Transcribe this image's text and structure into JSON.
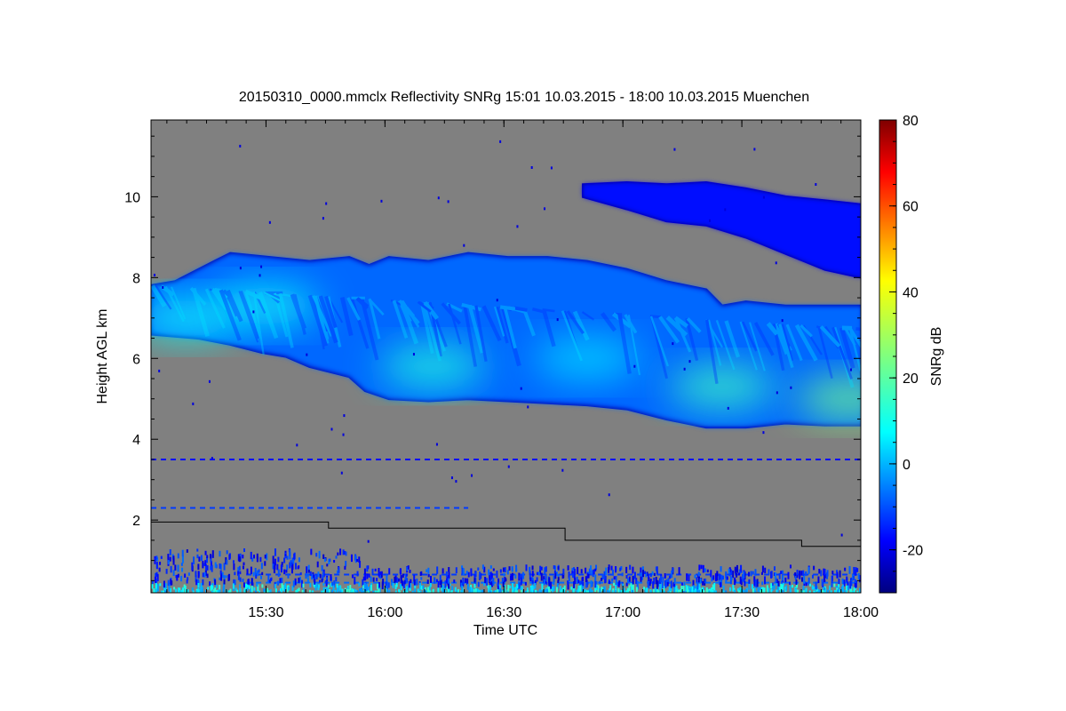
{
  "chart_data": {
    "type": "heatmap",
    "title": "20150310_0000.mmclx Reflectivity SNRg   15:01 10.03.2015 - 18:00 10.03.2015 Muenchen",
    "xlabel": "Time UTC",
    "ylabel": "Height AGL km",
    "xlim": [
      "15:01",
      "18:00"
    ],
    "ylim": [
      0.2,
      11.9
    ],
    "x_ticks": [
      "15:30",
      "16:00",
      "16:30",
      "17:00",
      "17:30",
      "18:00"
    ],
    "y_ticks": [
      "2",
      "4",
      "6",
      "8",
      "10"
    ],
    "background_color": "#808080",
    "colorbar": {
      "label": "SNRg dB",
      "range": [
        -30,
        80
      ],
      "ticks": [
        "-20",
        "0",
        "20",
        "40",
        "60",
        "80"
      ],
      "colormap": "jet"
    },
    "cloud_layers": [
      {
        "name": "main",
        "value_db": -5,
        "top": [
          [
            0.0,
            7.8
          ],
          [
            0.3,
            7.9
          ],
          [
            0.8,
            8.4
          ],
          [
            1.0,
            8.6
          ],
          [
            1.5,
            8.5
          ],
          [
            2.0,
            8.4
          ],
          [
            2.5,
            8.5
          ],
          [
            2.75,
            8.3
          ],
          [
            3.0,
            8.5
          ],
          [
            3.5,
            8.4
          ],
          [
            4.0,
            8.6
          ],
          [
            4.5,
            8.5
          ],
          [
            5.0,
            8.5
          ],
          [
            5.5,
            8.4
          ],
          [
            6.0,
            8.2
          ],
          [
            6.5,
            7.9
          ],
          [
            7.0,
            7.7
          ],
          [
            7.2,
            7.3
          ],
          [
            7.5,
            7.4
          ],
          [
            8.0,
            7.3
          ],
          [
            8.5,
            7.3
          ],
          [
            8.97,
            7.3
          ]
        ],
        "base": [
          [
            8.97,
            4.35
          ],
          [
            8.5,
            4.35
          ],
          [
            8.0,
            4.4
          ],
          [
            7.5,
            4.3
          ],
          [
            7.0,
            4.3
          ],
          [
            6.5,
            4.5
          ],
          [
            6.0,
            4.75
          ],
          [
            5.5,
            4.85
          ],
          [
            5.0,
            4.9
          ],
          [
            4.5,
            4.95
          ],
          [
            4.0,
            5.0
          ],
          [
            3.5,
            4.95
          ],
          [
            3.0,
            5.0
          ],
          [
            2.7,
            5.2
          ],
          [
            2.5,
            5.55
          ],
          [
            2.0,
            5.8
          ],
          [
            1.7,
            6.05
          ],
          [
            1.4,
            6.15
          ],
          [
            1.0,
            6.35
          ],
          [
            0.6,
            6.5
          ],
          [
            0.0,
            6.6
          ]
        ]
      },
      {
        "name": "upper",
        "value_db": -15,
        "top": [
          [
            5.45,
            10.3
          ],
          [
            6.0,
            10.35
          ],
          [
            6.5,
            10.3
          ],
          [
            7.0,
            10.35
          ],
          [
            7.5,
            10.2
          ],
          [
            8.0,
            10.0
          ],
          [
            8.5,
            9.9
          ],
          [
            8.97,
            9.8
          ]
        ],
        "base": [
          [
            8.97,
            8.0
          ],
          [
            8.5,
            8.2
          ],
          [
            8.0,
            8.6
          ],
          [
            7.5,
            9.0
          ],
          [
            7.0,
            9.3
          ],
          [
            6.5,
            9.4
          ],
          [
            6.0,
            9.7
          ],
          [
            5.45,
            10.0
          ]
        ]
      }
    ],
    "cores": [
      {
        "x": 0.45,
        "y": 7.0,
        "value_db": 12
      },
      {
        "x": 1.45,
        "y": 7.3,
        "value_db": 12
      },
      {
        "x": 3.55,
        "y": 5.8,
        "value_db": 15
      },
      {
        "x": 5.5,
        "y": 6.0,
        "value_db": 8
      },
      {
        "x": 7.2,
        "y": 5.3,
        "value_db": 18
      },
      {
        "x": 8.8,
        "y": 5.0,
        "value_db": 24
      }
    ],
    "clutter_lines": [
      {
        "y": 3.5,
        "x_range": [
          0.0,
          8.97
        ],
        "value_db": -15
      },
      {
        "y": 2.3,
        "x_range": [
          0.0,
          4.0
        ],
        "value_db": -10
      },
      {
        "y": 0.65,
        "x_range": [
          1.2,
          8.97
        ],
        "value_db": -10
      },
      {
        "y": 0.45,
        "x_range": [
          1.2,
          8.97
        ],
        "value_db": -5
      }
    ],
    "boundary_layer_line": {
      "color": "#000000",
      "points": [
        [
          0.0,
          1.95
        ],
        [
          3.75,
          1.95
        ],
        [
          3.75,
          1.8
        ],
        [
          8.75,
          1.8
        ],
        [
          8.75,
          1.5
        ],
        [
          13.75,
          1.5
        ],
        [
          13.75,
          1.35
        ],
        [
          15.0,
          1.35
        ]
      ],
      "x_scale": "segments_of_0_to_15"
    }
  }
}
